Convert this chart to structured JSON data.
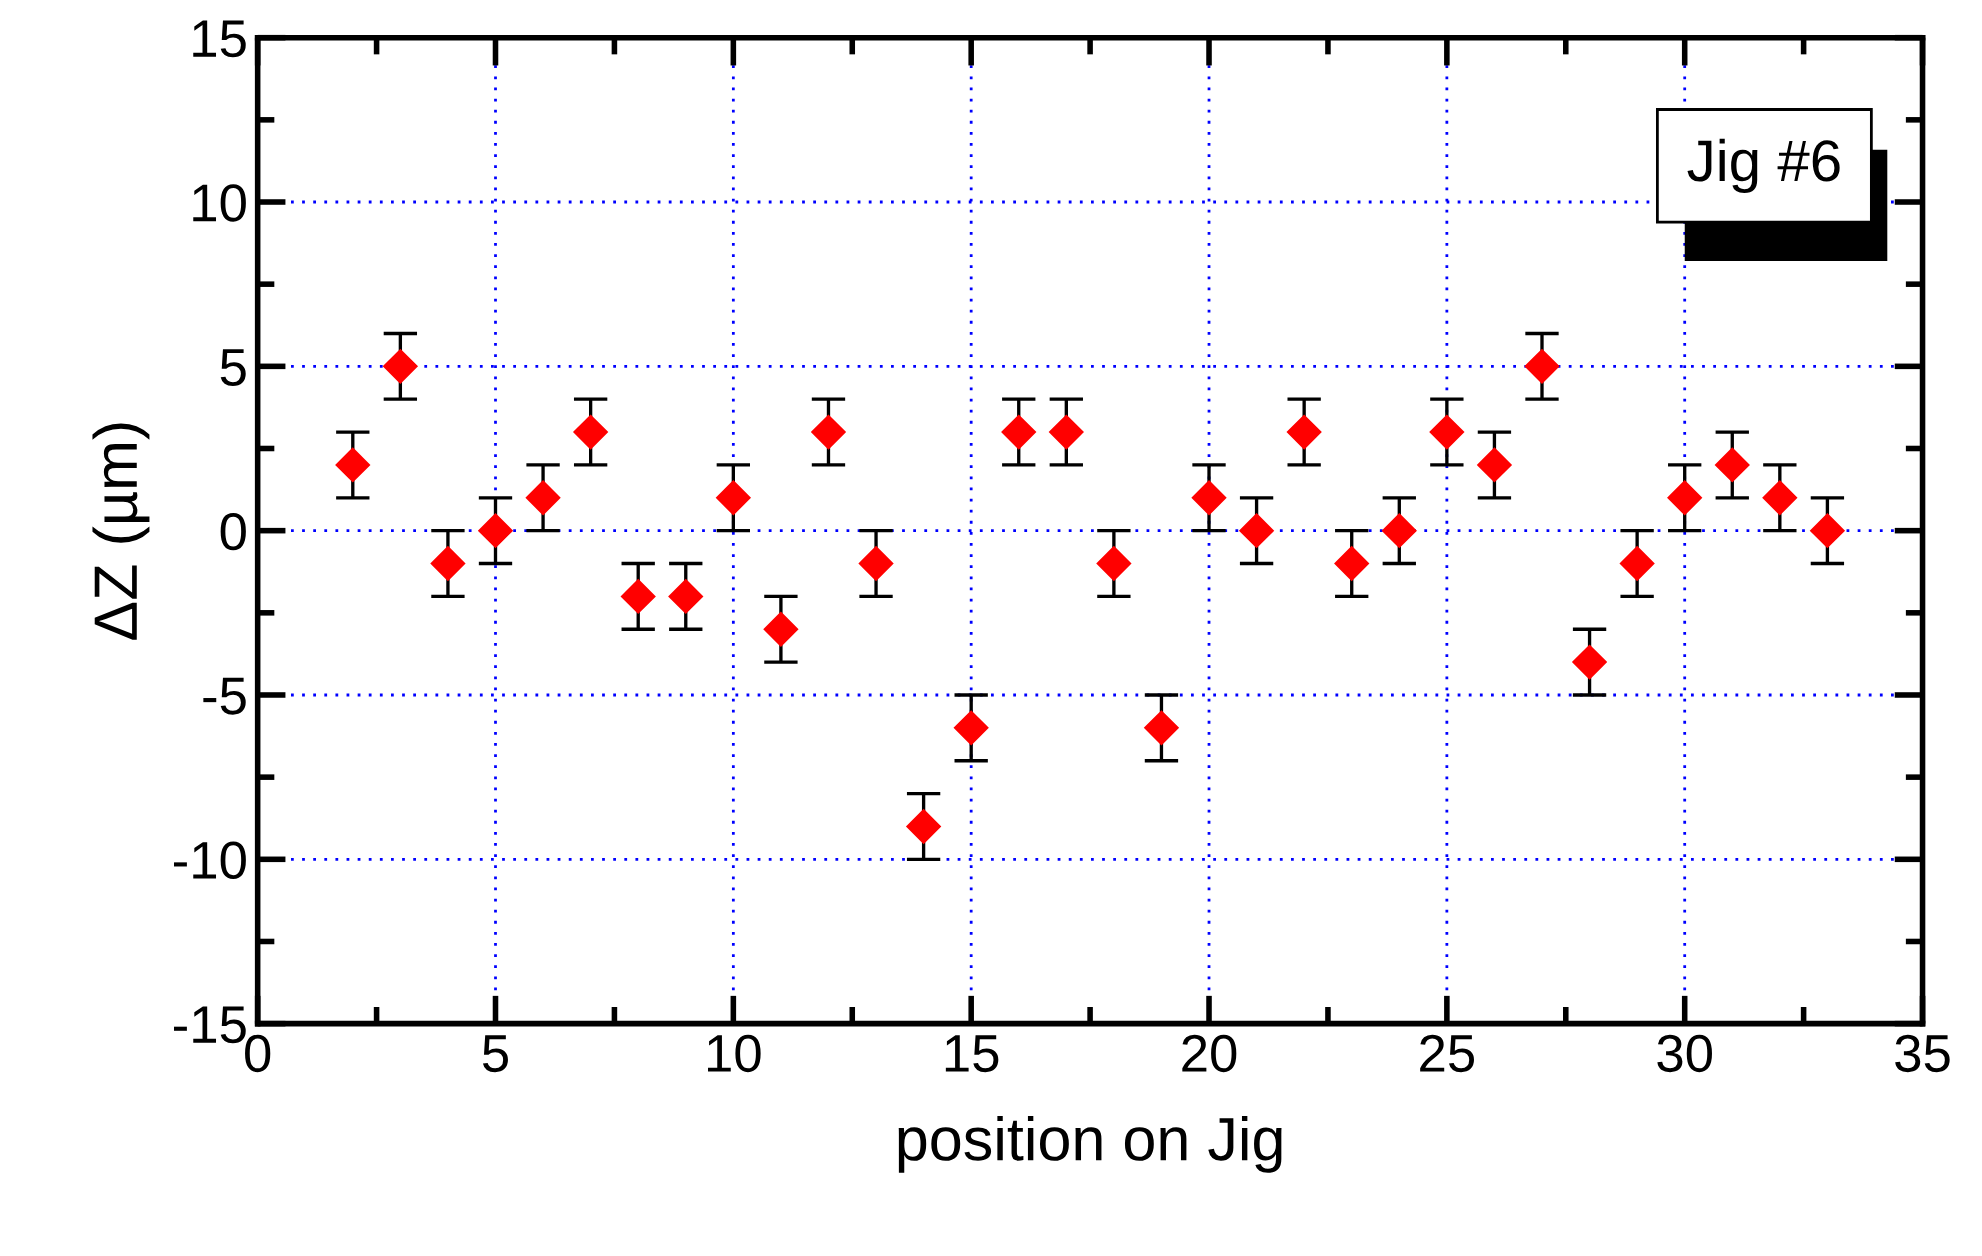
{
  "chart_data": {
    "type": "scatter",
    "xlabel": "position on Jig",
    "ylabel": "ΔZ (µm)",
    "annotations": [
      "Jig #6"
    ],
    "x": [
      2,
      3,
      4,
      5,
      6,
      7,
      8,
      9,
      10,
      11,
      12,
      13,
      14,
      15,
      16,
      17,
      18,
      19,
      20,
      21,
      22,
      23,
      24,
      25,
      26,
      27,
      28,
      29,
      30,
      31,
      32,
      33
    ],
    "series": [
      {
        "color": "#ff0000",
        "values": [
          2,
          5,
          -1,
          0,
          1,
          3,
          -2,
          -2,
          1,
          -3,
          3,
          -1,
          -9,
          -6,
          3,
          3,
          -1,
          -6,
          1,
          0,
          3,
          -1,
          0,
          3,
          2,
          5,
          -4,
          -1,
          1,
          2,
          1,
          0
        ],
        "errors": [
          1,
          1,
          1,
          1,
          1,
          1,
          1,
          1,
          1,
          1,
          1,
          1,
          1,
          1,
          1,
          1,
          1,
          1,
          1,
          1,
          1,
          1,
          1,
          1,
          1,
          1,
          1,
          1,
          1,
          1,
          1,
          1
        ]
      }
    ],
    "marker": "diamond",
    "xlim": [
      0,
      35
    ],
    "xticks": [
      0,
      5,
      10,
      15,
      20,
      25,
      30,
      35
    ],
    "ylim": [
      -15,
      15
    ],
    "yticks": [
      -15,
      -10,
      -5,
      0,
      5,
      10,
      15
    ],
    "grid": true
  }
}
